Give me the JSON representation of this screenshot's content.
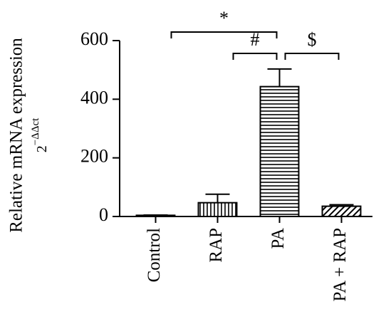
{
  "chart_data": {
    "type": "bar",
    "ylabel": "Relative mRNA expression",
    "ylabel_unit": {
      "base": "2",
      "exponent": "−ΔΔct"
    },
    "categories": [
      "Control",
      "RAP",
      "PA",
      "PA + RAP"
    ],
    "values": [
      4,
      47,
      443,
      35
    ],
    "errors": [
      1,
      29,
      60,
      5
    ],
    "patterns": [
      "none",
      "vertical",
      "horizontal",
      "diagonal"
    ],
    "color": "#000000",
    "ylim": [
      0,
      600
    ],
    "yticks": [
      0,
      200,
      400,
      600
    ],
    "annotations": [
      {
        "text": "*",
        "from": 0,
        "to": 2
      },
      {
        "text": "#",
        "from": 1,
        "to": 2
      },
      {
        "text": "$",
        "from": 2,
        "to": 3
      }
    ]
  }
}
